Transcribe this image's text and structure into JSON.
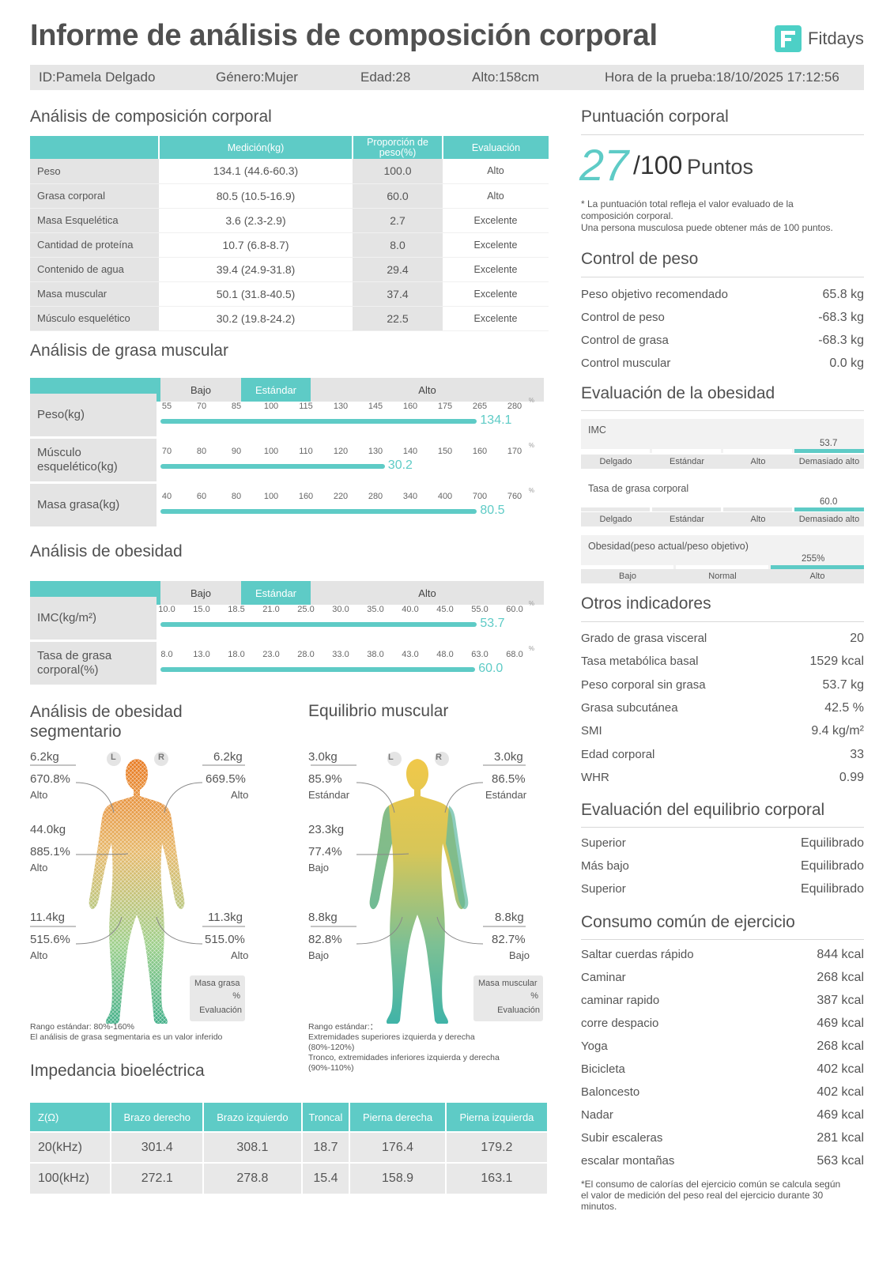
{
  "header": {
    "title": "Informe de análisis de composición corporal",
    "brand": "Fitdays",
    "id": "ID:Pamela Delgado",
    "gender": "Género:Mujer",
    "age": "Edad:28",
    "height": "Alto:158cm",
    "time": "Hora de la prueba:18/10/2025 17:12:56"
  },
  "composition": {
    "title": "Análisis de composición corporal",
    "headers": [
      "",
      "Medición(kg)",
      "Proporción de peso(%)",
      "Evaluación"
    ],
    "rows": [
      {
        "label": "Peso",
        "measure": "134.1 (44.6-60.3)",
        "ratio": "100.0",
        "eval": "Alto"
      },
      {
        "label": "Grasa corporal",
        "measure": "80.5 (10.5-16.9)",
        "ratio": "60.0",
        "eval": "Alto"
      },
      {
        "label": "Masa Esquelética",
        "measure": "3.6 (2.3-2.9)",
        "ratio": "2.7",
        "eval": "Excelente"
      },
      {
        "label": "Cantidad de proteína",
        "measure": "10.7 (6.8-8.7)",
        "ratio": "8.0",
        "eval": "Excelente"
      },
      {
        "label": "Contenido de agua",
        "measure": "39.4 (24.9-31.8)",
        "ratio": "29.4",
        "eval": "Excelente"
      },
      {
        "label": "Masa muscular",
        "measure": "50.1 (31.8-40.5)",
        "ratio": "37.4",
        "eval": "Excelente"
      },
      {
        "label": "Músculo esquelético",
        "measure": "30.2 (19.8-24.2)",
        "ratio": "22.5",
        "eval": "Excelente"
      }
    ]
  },
  "fat_muscle": {
    "title": "Análisis de grasa muscular",
    "levels": [
      "Bajo",
      "Estándar",
      "Alto"
    ],
    "rows": [
      {
        "label": "Peso(kg)",
        "ticks": [
          "55",
          "70",
          "85",
          "100",
          "115",
          "130",
          "145",
          "160",
          "175",
          "265",
          "280"
        ],
        "value": "134.1",
        "fill": 0.91
      },
      {
        "label": "Músculo esquelético(kg)",
        "ticks": [
          "70",
          "80",
          "90",
          "100",
          "110",
          "120",
          "130",
          "140",
          "150",
          "160",
          "170"
        ],
        "value": "30.2",
        "fill": 0.645
      },
      {
        "label": "Masa grasa(kg)",
        "ticks": [
          "40",
          "60",
          "80",
          "100",
          "160",
          "220",
          "280",
          "340",
          "400",
          "700",
          "760"
        ],
        "value": "80.5",
        "fill": 0.91
      }
    ]
  },
  "obesity": {
    "title": "Análisis de obesidad",
    "levels": [
      "Bajo",
      "Estándar",
      "Alto"
    ],
    "rows": [
      {
        "label": "IMC(kg/m²)",
        "ticks": [
          "10.0",
          "15.0",
          "18.5",
          "21.0",
          "25.0",
          "30.0",
          "35.0",
          "40.0",
          "45.0",
          "55.0",
          "60.0"
        ],
        "value": "53.7",
        "fill": 0.91
      },
      {
        "label": "Tasa de grasa corporal(%)",
        "ticks": [
          "8.0",
          "13.0",
          "18.0",
          "23.0",
          "28.0",
          "33.0",
          "38.0",
          "43.0",
          "48.0",
          "63.0",
          "68.0"
        ],
        "value": "60.0",
        "fill": 0.905
      }
    ]
  },
  "segmental_fat": {
    "title": "Análisis de obesidad segmentario",
    "left_arm": {
      "kg": "6.2kg",
      "pct": "670.8%",
      "eval": "Alto"
    },
    "right_arm": {
      "kg": "6.2kg",
      "pct": "669.5%",
      "eval": "Alto"
    },
    "trunk": {
      "kg": "44.0kg",
      "pct": "885.1%",
      "eval": "Alto"
    },
    "left_leg": {
      "kg": "11.4kg",
      "pct": "515.6%",
      "eval": "Alto"
    },
    "right_leg": {
      "kg": "11.3kg",
      "pct": "515.0%",
      "eval": "Alto"
    },
    "legend": [
      "Masa grasa",
      "%",
      "Evaluación"
    ],
    "note1": "Rango estándar:  80%-160%",
    "note2": "El análisis de grasa segmentaria es un valor inferido"
  },
  "muscle_balance": {
    "title": "Equilibrio muscular",
    "left_arm": {
      "kg": "3.0kg",
      "pct": "85.9%",
      "eval": "Estándar"
    },
    "right_arm": {
      "kg": "3.0kg",
      "pct": "86.5%",
      "eval": "Estándar"
    },
    "trunk": {
      "kg": "23.3kg",
      "pct": "77.4%",
      "eval": "Bajo"
    },
    "left_leg": {
      "kg": "8.8kg",
      "pct": "82.8%",
      "eval": "Bajo"
    },
    "right_leg": {
      "kg": "8.8kg",
      "pct": "82.7%",
      "eval": "Bajo"
    },
    "legend": [
      "Masa muscular",
      "%",
      "Evaluación"
    ],
    "note1": "Rango estándar:：",
    "note2": " Extremidades superiores izquierda y derecha",
    "note3": "(80%-120%)",
    "note4": "Tronco, extremidades inferiores izquierda y derecha",
    "note5": "(90%-110%)"
  },
  "side_labels": {
    "left": "L",
    "right": "R"
  },
  "impedance": {
    "title": "Impedancia bioeléctrica",
    "headers": [
      "Z(Ω)",
      "Brazo derecho",
      "Brazo izquierdo",
      "Troncal",
      "Pierna derecha",
      "Pierna izquierda"
    ],
    "rows": [
      [
        "20(kHz)",
        "301.4",
        "308.1",
        "18.7",
        "176.4",
        "179.2"
      ],
      [
        "100(kHz)",
        "272.1",
        "278.8",
        "15.4",
        "158.9",
        "163.1"
      ]
    ]
  },
  "score": {
    "title": "Puntuación corporal",
    "value": "27",
    "max": "/100",
    "unit": "Puntos",
    "note1": "* La puntuación total refleja el valor evaluado de la",
    "note2": "composición corporal.",
    "note3": "Una persona musculosa puede obtener más de 100 puntos."
  },
  "weight_control": {
    "title": "Control de peso",
    "rows": [
      {
        "label": "Peso objetivo recomendado",
        "value": "65.8 kg"
      },
      {
        "label": "Control de peso",
        "value": "-68.3 kg"
      },
      {
        "label": "Control de grasa",
        "value": "-68.3 kg"
      },
      {
        "label": "Control muscular",
        "value": "0.0 kg"
      }
    ]
  },
  "obesity_eval": {
    "title": "Evaluación de la obesidad",
    "imc": {
      "label": "IMC",
      "value": "53.7",
      "levels": [
        "Delgado",
        "Estándar",
        "Alto",
        "Demasiado alto"
      ]
    },
    "fat": {
      "label": "Tasa de grasa corporal",
      "value": "60.0",
      "levels": [
        "Delgado",
        "Estándar",
        "Alto",
        "Demasiado alto"
      ]
    },
    "ratio": {
      "label": "Obesidad(peso actual/peso objetivo)",
      "value": "255%",
      "levels": [
        "Bajo",
        "Normal",
        "Alto"
      ]
    }
  },
  "other": {
    "title": "Otros indicadores",
    "rows": [
      {
        "label": "Grado de grasa visceral",
        "value": "20"
      },
      {
        "label": "Tasa metabólica basal",
        "value": "1529 kcal"
      },
      {
        "label": "Peso corporal sin grasa",
        "value": "53.7 kg"
      },
      {
        "label": "Grasa subcutánea",
        "value": "42.5 %"
      },
      {
        "label": "SMI",
        "value": "9.4 kg/m²"
      },
      {
        "label": "Edad corporal",
        "value": "33"
      },
      {
        "label": "WHR",
        "value": "0.99"
      }
    ]
  },
  "balance": {
    "title": "Evaluación del equilibrio corporal",
    "rows": [
      {
        "label": "Superior",
        "value": "Equilibrado"
      },
      {
        "label": "Más bajo",
        "value": "Equilibrado"
      },
      {
        "label": "Superior",
        "value": "Equilibrado"
      }
    ]
  },
  "exercise": {
    "title": "Consumo común de ejercicio",
    "rows": [
      {
        "label": "Saltar cuerdas rápido",
        "value": "844 kcal"
      },
      {
        "label": "Caminar",
        "value": "268 kcal"
      },
      {
        "label": "caminar rapido",
        "value": "387 kcal"
      },
      {
        "label": "corre despacio",
        "value": "469 kcal"
      },
      {
        "label": "Yoga",
        "value": "268 kcal"
      },
      {
        "label": "Bicicleta",
        "value": "402 kcal"
      },
      {
        "label": "Baloncesto",
        "value": "402 kcal"
      },
      {
        "label": "Nadar",
        "value": "469 kcal"
      },
      {
        "label": "Subir escaleras",
        "value": "281 kcal"
      },
      {
        "label": "escalar montañas",
        "value": "563 kcal"
      }
    ],
    "note1": "*El consumo de calorías del ejercicio común se calcula según",
    "note2": "el valor de medición del peso real del ejercicio durante 30",
    "note3": "minutos."
  },
  "colors": {
    "accent": "#5ecbc6",
    "orange": "#e58a2a",
    "green_body": "#3fae88"
  }
}
